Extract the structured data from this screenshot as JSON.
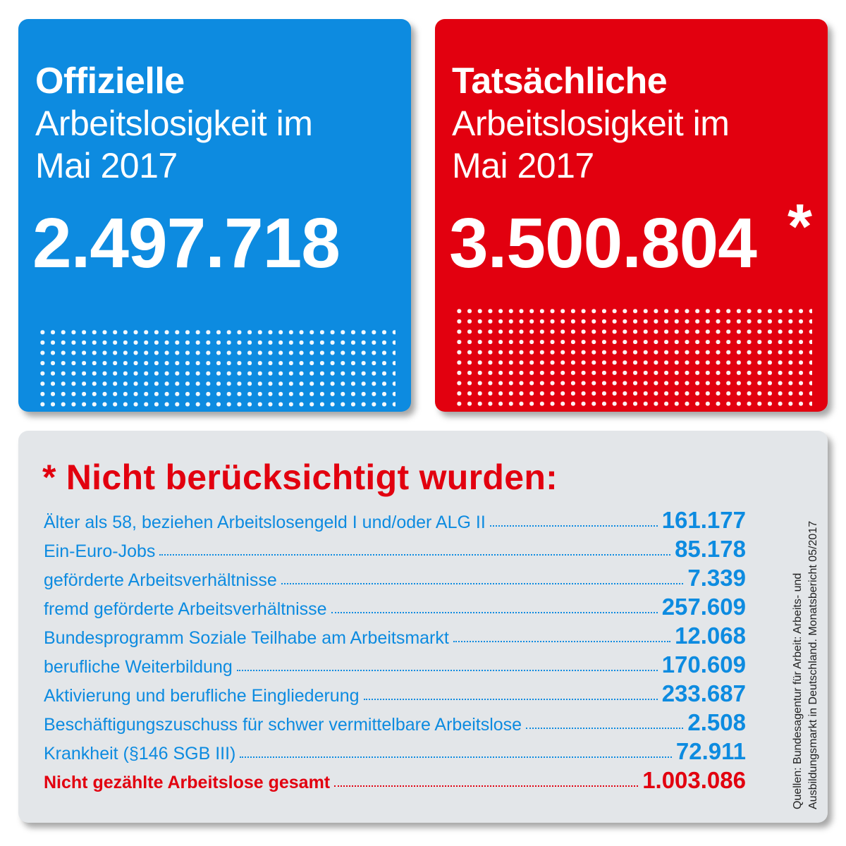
{
  "official": {
    "heading_bold": "Offizielle",
    "heading_line1": "Arbeitslosigkeit im",
    "heading_line2": "Mai 2017",
    "number": "2.497.718"
  },
  "actual": {
    "heading_bold": "Tatsächliche",
    "heading_line1": "Arbeitslosigkeit im",
    "heading_line2": "Mai 2017",
    "number": "3.500.804",
    "asterisk": "*"
  },
  "not_counted": {
    "star": "*",
    "title": "Nicht berücksichtigt wurden:",
    "rows": [
      {
        "label": "Älter als 58, beziehen Arbeitslosengeld I und/oder ALG II",
        "value": "161.177"
      },
      {
        "label": "Ein-Euro-Jobs",
        "value": "85.178"
      },
      {
        "label": "geförderte Arbeitsverhältnisse",
        "value": "7.339"
      },
      {
        "label": "fremd geförderte Arbeitsverhältnisse",
        "value": "257.609"
      },
      {
        "label": "Bundesprogramm Soziale Teilhabe am Arbeitsmarkt",
        "value": "12.068"
      },
      {
        "label": "berufliche Weiterbildung",
        "value": "170.609"
      },
      {
        "label": "Aktivierung und berufliche Eingliederung",
        "value": "233.687"
      },
      {
        "label": "Beschäftigungszuschuss für schwer vermittelbare Arbeitslose",
        "value": "2.508"
      },
      {
        "label": "Krankheit (§146 SGB III)",
        "value": "72.911"
      }
    ],
    "total": {
      "label": "Nicht gezählte Arbeitslose gesamt",
      "value": "1.003.086"
    }
  },
  "source": {
    "line1": "Quellen: Bundesagentur für Arbeit: Arbeits- und",
    "line2": "Ausbildungsmarkt in Deutschland. Monatsbericht 05/2017"
  },
  "colors": {
    "blue": "#0d8be0",
    "red": "#e2000f",
    "panel": "#e3e6e9"
  }
}
